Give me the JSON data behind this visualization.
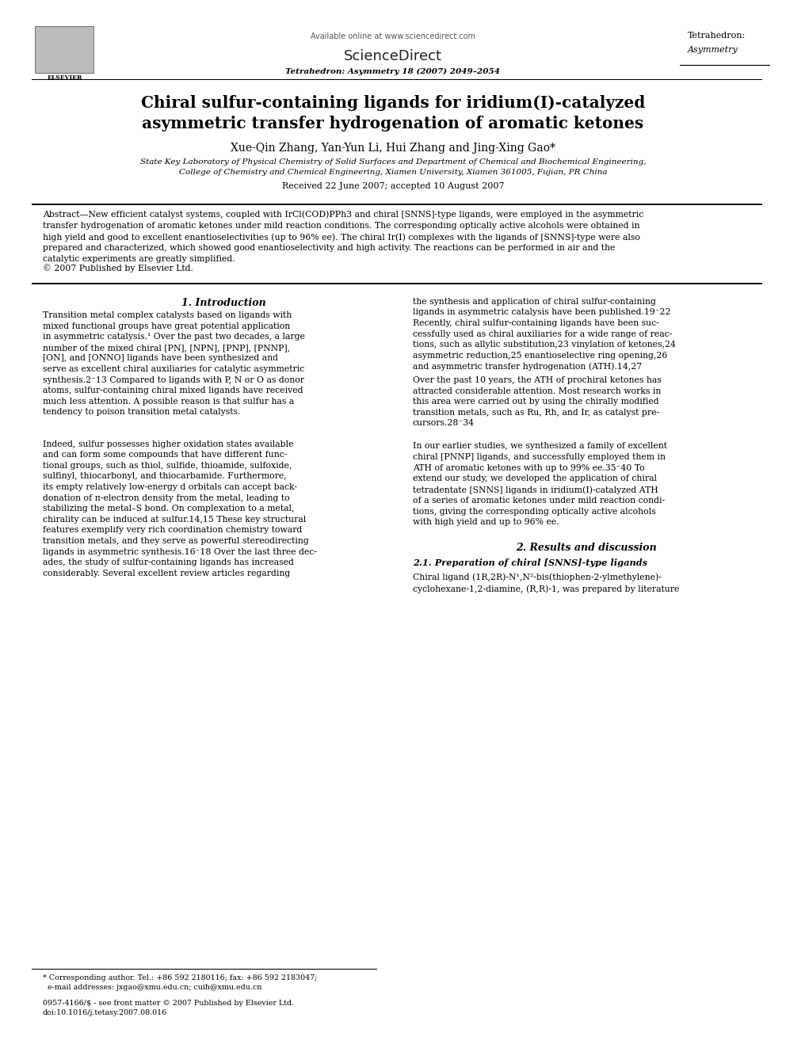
{
  "bg_color": "#ffffff",
  "page_width": 9.92,
  "page_height": 13.23,
  "header": {
    "available_online": "Available online at www.sciencedirect.com",
    "sciencedirect": "ScienceDirect",
    "journal_name_right": "Tetrahedron:",
    "journal_name_right2": "Asymmetry",
    "elsevier_text": "ELSEVIER",
    "journal_info": "Tetrahedron: Asymmetry 18 (2007) 2049–2054"
  },
  "title": "Chiral sulfur-containing ligands for iridium(I)-catalyzed\nasymmetric transfer hydrogenation of aromatic ketones",
  "authors": "Xue-Qin Zhang, Yan-Yun Li, Hui Zhang and Jing-Xing Gao*",
  "affiliation1": "State Key Laboratory of Physical Chemistry of Solid Surfaces and Department of Chemical and Biochemical Engineering,",
  "affiliation2": "College of Chemistry and Chemical Engineering, Xiamen University, Xiamen 361005, Fujian, PR China",
  "received": "Received 22 June 2007; accepted 10 August 2007",
  "abstract_title": "Abstract",
  "abstract_text": "—New efficient catalyst systems, coupled with IrCl(COD)PPh3 and chiral [SNNS]-type ligands, were employed in the asymmetric transfer hydrogenation of aromatic ketones under mild reaction conditions. The corresponding optically active alcohols were obtained in high yield and good to excellent enantioselectivities (up to 96% ee). The chiral Ir(I) complexes with the ligands of [SNNS]-type were also prepared and characterized, which showed good enantioselectivity and high activity. The reactions can be performed in air and the catalytic experiments are greatly simplified.",
  "copyright": "© 2007 Published by Elsevier Ltd.",
  "section1_title": "1. Introduction",
  "footnote1": "* Corresponding author. Tel.: +86 592 2180116; fax: +86 592 2183047;",
  "footnote2": "  e-mail addresses: jxgao@xmu.edu.cn; cuih@xmu.edu.cn",
  "footnote3": "0957-4166/$ - see front matter © 2007 Published by Elsevier Ltd.",
  "footnote4": "doi:10.1016/j.tetasy.2007.08.016",
  "section2_title": "2. Results and discussion",
  "section2_sub1": "2.1. Preparation of chiral [SNNS]-type ligands",
  "section2_sub1_text": "Chiral ligand (1R,2R)-N¹,N²-bis(thiophen-2-ylmethylene)-\ncyclohexane-1,2-diamine, (R,R)-1, was prepared by literature"
}
